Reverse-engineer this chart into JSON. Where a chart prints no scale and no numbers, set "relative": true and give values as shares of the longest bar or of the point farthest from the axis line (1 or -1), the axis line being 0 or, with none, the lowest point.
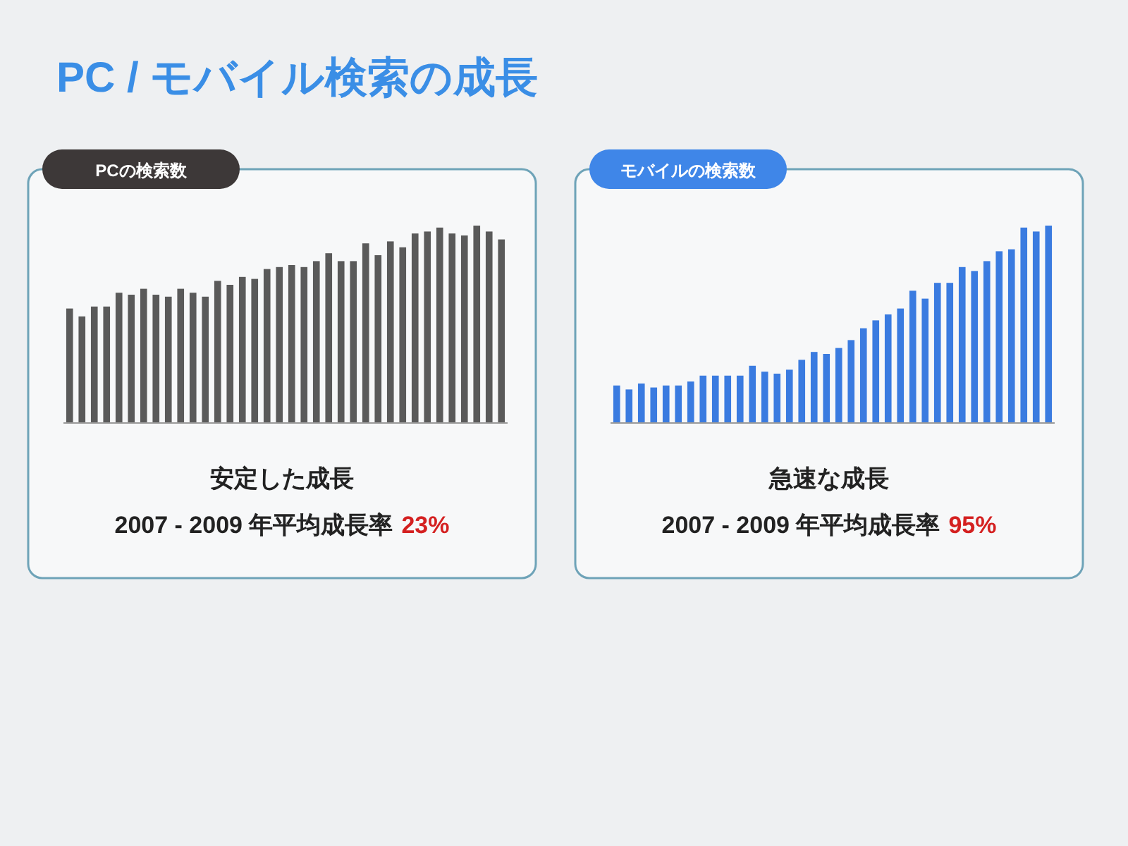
{
  "chart_data": [
    {
      "type": "bar",
      "title": "PC / モバイル検索の成長",
      "subtitle": "PCの検索数",
      "relative": true,
      "color": "#5a5a5a",
      "categories": [
        null,
        null,
        null,
        null,
        null,
        null,
        null,
        null,
        null,
        null,
        null,
        null,
        null,
        null,
        null,
        null,
        null,
        null,
        null,
        null,
        null,
        null,
        null,
        null,
        null,
        null,
        null,
        null,
        null,
        null,
        null,
        null,
        null,
        null,
        null,
        null
      ],
      "values": [
        0.58,
        0.54,
        0.59,
        0.59,
        0.66,
        0.65,
        0.68,
        0.65,
        0.64,
        0.68,
        0.66,
        0.64,
        0.72,
        0.7,
        0.74,
        0.73,
        0.78,
        0.79,
        0.8,
        0.79,
        0.82,
        0.86,
        0.82,
        0.82,
        0.91,
        0.85,
        0.92,
        0.89,
        0.96,
        0.97,
        0.99,
        0.96,
        0.95,
        1,
        0.97,
        0.93
      ],
      "annotations": [
        "安定した成長",
        "2007 - 2009 年平均成長率",
        "23%"
      ]
    },
    {
      "type": "bar",
      "subtitle": "モバイルの検索数",
      "relative": true,
      "color": "#3a7be0",
      "categories": [
        null,
        null,
        null,
        null,
        null,
        null,
        null,
        null,
        null,
        null,
        null,
        null,
        null,
        null,
        null,
        null,
        null,
        null,
        null,
        null,
        null,
        null,
        null,
        null,
        null,
        null,
        null,
        null,
        null,
        null,
        null,
        null,
        null,
        null,
        null,
        null
      ],
      "values": [
        0.19,
        0.17,
        0.2,
        0.18,
        0.19,
        0.19,
        0.21,
        0.24,
        0.24,
        0.24,
        0.24,
        0.29,
        0.26,
        0.25,
        0.27,
        0.32,
        0.36,
        0.35,
        0.38,
        0.42,
        0.48,
        0.52,
        0.55,
        0.58,
        0.67,
        0.63,
        0.71,
        0.71,
        0.79,
        0.77,
        0.82,
        0.87,
        0.88,
        0.99,
        0.97,
        1
      ],
      "annotations": [
        "急速な成長",
        "2007 - 2009 年平均成長率",
        "95%"
      ]
    }
  ]
}
